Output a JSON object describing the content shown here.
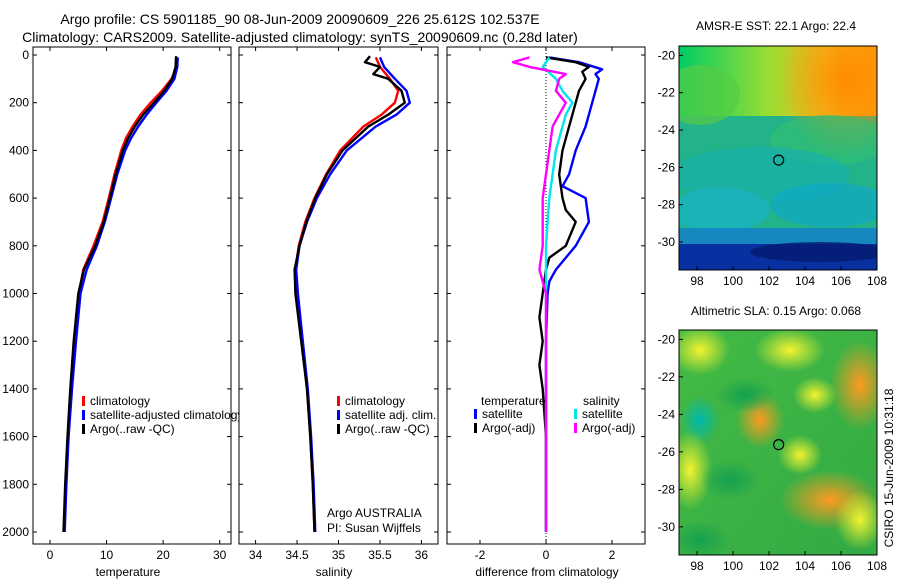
{
  "header": {
    "line1": "Argo profile: CS 5901185_90 08-Jun-2009 20090609_226 25.612S 102.537E",
    "line2": "Climatology: CARS2009. Satellite-adjusted climatology: synTS_20090609.nc (0.28d later)"
  },
  "side_label": "CSIRO 15-Jun-2009 10:31:18",
  "colors": {
    "climatology": "#ff0000",
    "satellite": "#0000ff",
    "argo": "#000000",
    "sal_sat": "#00e5ee",
    "sal_argo": "#ff00ff"
  },
  "chart_data": [
    {
      "id": "temperature",
      "type": "line",
      "xlabel": "temperature",
      "ylabel": "",
      "xlim": [
        -3,
        32
      ],
      "ylim": [
        2070,
        -10
      ],
      "y_reversed": true,
      "xticks": [
        0,
        10,
        20,
        30
      ],
      "yticks": [
        0,
        200,
        400,
        600,
        800,
        1000,
        1200,
        1400,
        1600,
        1800,
        2000
      ],
      "legend": [
        "climatology",
        "satellite-adjusted climatology",
        "Argo(..raw -QC)"
      ],
      "series": [
        {
          "name": "climatology",
          "color": "#ff0000",
          "depth": [
            10,
            50,
            100,
            150,
            200,
            250,
            300,
            350,
            400,
            500,
            600,
            700,
            800,
            900,
            1000,
            1200,
            1400,
            1600,
            1800,
            2000
          ],
          "values": [
            22.5,
            22.4,
            21.5,
            19.8,
            17.8,
            16.0,
            14.6,
            13.4,
            12.6,
            11.4,
            10.4,
            9.3,
            7.7,
            5.9,
            5.1,
            4.3,
            3.7,
            3.2,
            2.8,
            2.5
          ]
        },
        {
          "name": "satellite-adjusted climatology",
          "color": "#0000ff",
          "depth": [
            10,
            50,
            100,
            150,
            200,
            250,
            300,
            350,
            400,
            500,
            600,
            700,
            800,
            900,
            1000,
            1200,
            1400,
            1600,
            1800,
            2000
          ],
          "values": [
            22.6,
            22.5,
            22.0,
            20.6,
            18.8,
            17.1,
            15.6,
            14.3,
            13.3,
            11.9,
            10.8,
            9.7,
            8.3,
            6.5,
            5.4,
            4.6,
            3.9,
            3.3,
            2.9,
            2.6
          ]
        },
        {
          "name": "Argo(..raw -QC)",
          "color": "#000000",
          "depth": [
            5,
            50,
            100,
            150,
            200,
            250,
            300,
            350,
            400,
            500,
            600,
            700,
            800,
            900,
            1000,
            1200,
            1400,
            1600,
            1800,
            2000
          ],
          "values": [
            22.3,
            22.2,
            21.6,
            20.2,
            18.4,
            16.5,
            15.0,
            13.8,
            12.9,
            11.6,
            10.6,
            9.5,
            8.0,
            6.0,
            5.0,
            4.2,
            3.6,
            3.1,
            2.7,
            2.4
          ]
        }
      ]
    },
    {
      "id": "salinity",
      "type": "line",
      "xlabel": "salinity",
      "ylabel": "",
      "xlim": [
        33.8,
        36.2
      ],
      "ylim": [
        2070,
        -10
      ],
      "y_reversed": true,
      "xticks": [
        34,
        34.5,
        35,
        35.5,
        36
      ],
      "legend": [
        "climatology",
        "satellite adj. clim.",
        "Argo(..raw -QC)"
      ],
      "annotations": [
        "Argo AUSTRALIA",
        "PI: Susan Wijffels"
      ],
      "series": [
        {
          "name": "climatology",
          "color": "#ff0000",
          "depth": [
            10,
            50,
            100,
            150,
            200,
            250,
            300,
            400,
            500,
            600,
            700,
            800,
            900,
            1000,
            1200,
            1400,
            1600,
            1800,
            2000
          ],
          "values": [
            35.45,
            35.5,
            35.62,
            35.72,
            35.68,
            35.52,
            35.3,
            35.02,
            34.85,
            34.71,
            34.6,
            34.52,
            34.48,
            34.5,
            34.56,
            34.62,
            34.66,
            34.69,
            34.71
          ]
        },
        {
          "name": "satellite adj. clim.",
          "color": "#0000ff",
          "depth": [
            10,
            50,
            100,
            150,
            200,
            250,
            300,
            400,
            500,
            600,
            700,
            800,
            900,
            1000,
            1200,
            1400,
            1600,
            1800,
            2000
          ],
          "values": [
            35.5,
            35.55,
            35.68,
            35.82,
            35.86,
            35.7,
            35.45,
            35.1,
            34.9,
            34.74,
            34.62,
            34.53,
            34.49,
            34.51,
            34.57,
            34.63,
            34.67,
            34.7,
            34.72
          ]
        },
        {
          "name": "Argo(..raw -QC)",
          "color": "#000000",
          "depth": [
            5,
            30,
            50,
            80,
            100,
            150,
            200,
            250,
            300,
            400,
            500,
            600,
            700,
            800,
            900,
            1000,
            1200,
            1400,
            1600,
            1800,
            2000
          ],
          "values": [
            35.38,
            35.32,
            35.5,
            35.42,
            35.6,
            35.76,
            35.8,
            35.6,
            35.36,
            35.05,
            34.86,
            34.72,
            34.61,
            34.53,
            34.47,
            34.48,
            34.55,
            34.62,
            34.66,
            34.69,
            34.71
          ]
        }
      ]
    },
    {
      "id": "difference",
      "type": "line",
      "xlabel": "difference from climatology",
      "ylabel": "",
      "xlim": [
        -3,
        3
      ],
      "ylim": [
        2070,
        -10
      ],
      "y_reversed": true,
      "xticks": [
        -2,
        0,
        2
      ],
      "zero_line": true,
      "legend_groups": [
        "temperature",
        "salinity"
      ],
      "legend": [
        "satellite",
        "Argo(-adj)",
        "satellite",
        "Argo(-adj)"
      ],
      "series": [
        {
          "name": "satellite",
          "group": "temperature",
          "color": "#0000ff",
          "depth": [
            10,
            30,
            60,
            80,
            100,
            150,
            200,
            300,
            400,
            500,
            550,
            600,
            700,
            800,
            900,
            950,
            1000,
            1200,
            1400,
            1600,
            1800,
            2000
          ],
          "values": [
            0.1,
            1.0,
            1.7,
            1.5,
            1.6,
            1.5,
            1.4,
            1.2,
            0.9,
            0.7,
            0.5,
            1.2,
            1.3,
            0.9,
            0.3,
            0.1,
            0.05,
            0.0,
            0.0,
            0.0,
            0.0,
            0.0
          ]
        },
        {
          "name": "Argo(-adj)",
          "group": "temperature",
          "color": "#000000",
          "depth": [
            10,
            30,
            50,
            70,
            100,
            150,
            200,
            300,
            400,
            500,
            600,
            650,
            700,
            800,
            850,
            900,
            1000,
            1100,
            1200,
            1300,
            1400,
            1600,
            1800,
            2000
          ],
          "values": [
            0.0,
            0.9,
            1.3,
            1.1,
            1.2,
            1.0,
            0.9,
            0.7,
            0.5,
            0.4,
            0.5,
            0.6,
            0.9,
            0.6,
            0.1,
            0.0,
            -0.1,
            -0.2,
            -0.1,
            -0.2,
            -0.1,
            0.0,
            0.0,
            0.0
          ]
        },
        {
          "name": "satellite",
          "group": "salinity",
          "color": "#00e5ee",
          "depth": [
            10,
            50,
            100,
            150,
            200,
            250,
            300,
            400,
            500,
            600,
            700,
            800,
            900,
            1000,
            1200,
            1400,
            1600,
            1800,
            2000
          ],
          "values": [
            0.1,
            -0.1,
            0.3,
            0.5,
            0.8,
            0.6,
            0.5,
            0.3,
            0.2,
            0.1,
            0.05,
            0.0,
            0.0,
            0.0,
            0.0,
            0.0,
            0.0,
            0.0,
            0.0
          ]
        },
        {
          "name": "Argo(-adj)",
          "group": "salinity",
          "color": "#ff00ff",
          "depth": [
            10,
            30,
            50,
            80,
            100,
            150,
            200,
            250,
            300,
            400,
            500,
            600,
            700,
            800,
            900,
            1000,
            1200,
            1400,
            1600,
            1800,
            2000
          ],
          "values": [
            -0.5,
            -1.0,
            -0.5,
            0.6,
            0.4,
            0.3,
            0.6,
            0.4,
            0.2,
            0.1,
            0.0,
            -0.1,
            -0.1,
            -0.1,
            -0.2,
            0.0,
            0.0,
            0.0,
            0.0,
            0.0,
            0.0
          ]
        }
      ]
    },
    {
      "id": "sst_map",
      "type": "heatmap",
      "title": "AMSR-E SST: 22.1 Argo: 22.4",
      "x_range": [
        97,
        108
      ],
      "y_range": [
        -31.5,
        -19.5
      ],
      "xticks": [
        98,
        100,
        102,
        104,
        106,
        108
      ],
      "yticks": [
        -20,
        -22,
        -24,
        -26,
        -28,
        -30
      ],
      "marker": {
        "lon": 102.537,
        "lat": -25.612
      }
    },
    {
      "id": "sla_map",
      "type": "heatmap",
      "title": "Altimetric SLA: 0.15 Argo: 0.068",
      "x_range": [
        97,
        108
      ],
      "y_range": [
        -31.5,
        -19.5
      ],
      "xticks": [
        98,
        100,
        102,
        104,
        106,
        108
      ],
      "yticks": [
        -20,
        -22,
        -24,
        -26,
        -28,
        -30
      ],
      "marker": {
        "lon": 102.537,
        "lat": -25.612
      }
    }
  ]
}
